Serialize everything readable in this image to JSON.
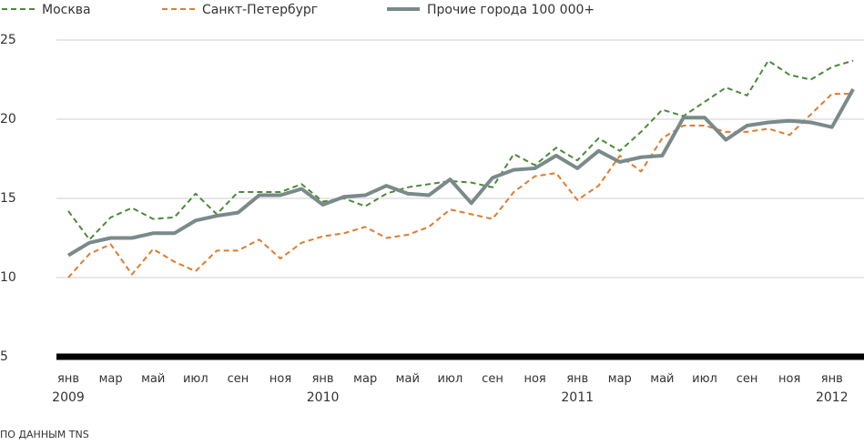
{
  "chart_data": {
    "type": "line",
    "title": "",
    "xlabel": "",
    "ylabel": "",
    "ylim": [
      5,
      25
    ],
    "yticks": [
      "5",
      "10",
      "15",
      "20",
      "25"
    ],
    "grid": true,
    "legend_position": "top",
    "x": [
      "2009-01",
      "2009-02",
      "2009-03",
      "2009-04",
      "2009-05",
      "2009-06",
      "2009-07",
      "2009-08",
      "2009-09",
      "2009-10",
      "2009-11",
      "2009-12",
      "2010-01",
      "2010-02",
      "2010-03",
      "2010-04",
      "2010-05",
      "2010-06",
      "2010-07",
      "2010-08",
      "2010-09",
      "2010-10",
      "2010-11",
      "2010-12",
      "2011-01",
      "2011-02",
      "2011-03",
      "2011-04",
      "2011-05",
      "2011-06",
      "2011-07",
      "2011-08",
      "2011-09",
      "2011-10",
      "2011-11",
      "2011-12",
      "2012-01",
      "2012-02"
    ],
    "xtick_labels": [
      "янв",
      "мар",
      "май",
      "июл",
      "сен",
      "ноя",
      "янв",
      "мар",
      "май",
      "июл",
      "сен",
      "ноя",
      "янв",
      "мар",
      "май",
      "июл",
      "сен",
      "ноя",
      "янв"
    ],
    "year_labels": [
      "2009",
      "2010",
      "2011",
      "2012"
    ],
    "series": [
      {
        "name": "Москва",
        "color": "#4a8a3a",
        "style": "dashed",
        "values": [
          14.2,
          12.4,
          13.8,
          14.4,
          13.7,
          13.8,
          15.3,
          14.0,
          15.4,
          15.4,
          15.4,
          15.9,
          14.8,
          15.0,
          14.5,
          15.3,
          15.7,
          15.9,
          16.1,
          16.0,
          15.7,
          17.8,
          17.1,
          18.2,
          17.4,
          18.8,
          18.0,
          19.2,
          20.6,
          20.2,
          21.1,
          22.0,
          21.5,
          23.7,
          22.8,
          22.5,
          23.3,
          23.7
        ]
      },
      {
        "name": "Санкт-Петербург",
        "color": "#e07b2e",
        "style": "dashed",
        "values": [
          10.0,
          11.5,
          12.1,
          10.2,
          11.8,
          11.0,
          10.4,
          11.7,
          11.7,
          12.4,
          11.2,
          12.2,
          12.6,
          12.8,
          13.2,
          12.5,
          12.7,
          13.2,
          14.3,
          14.0,
          13.7,
          15.4,
          16.4,
          16.6,
          14.9,
          15.8,
          17.7,
          16.7,
          18.8,
          19.6,
          19.6,
          19.2,
          19.2,
          19.4,
          19.0,
          20.3,
          21.6,
          21.6
        ]
      },
      {
        "name": "Прочие города 100 000+",
        "color": "#7a8a8a",
        "style": "solid",
        "values": [
          11.4,
          12.2,
          12.5,
          12.5,
          12.8,
          12.8,
          13.6,
          13.9,
          14.1,
          15.2,
          15.2,
          15.6,
          14.6,
          15.1,
          15.2,
          15.8,
          15.3,
          15.2,
          16.2,
          14.7,
          16.3,
          16.8,
          16.9,
          17.7,
          16.9,
          18.0,
          17.3,
          17.6,
          17.7,
          20.1,
          20.1,
          18.7,
          19.6,
          19.8,
          19.9,
          19.8,
          19.5,
          21.9
        ]
      }
    ],
    "source_note": "ПО ДАННЫМ TNS"
  }
}
